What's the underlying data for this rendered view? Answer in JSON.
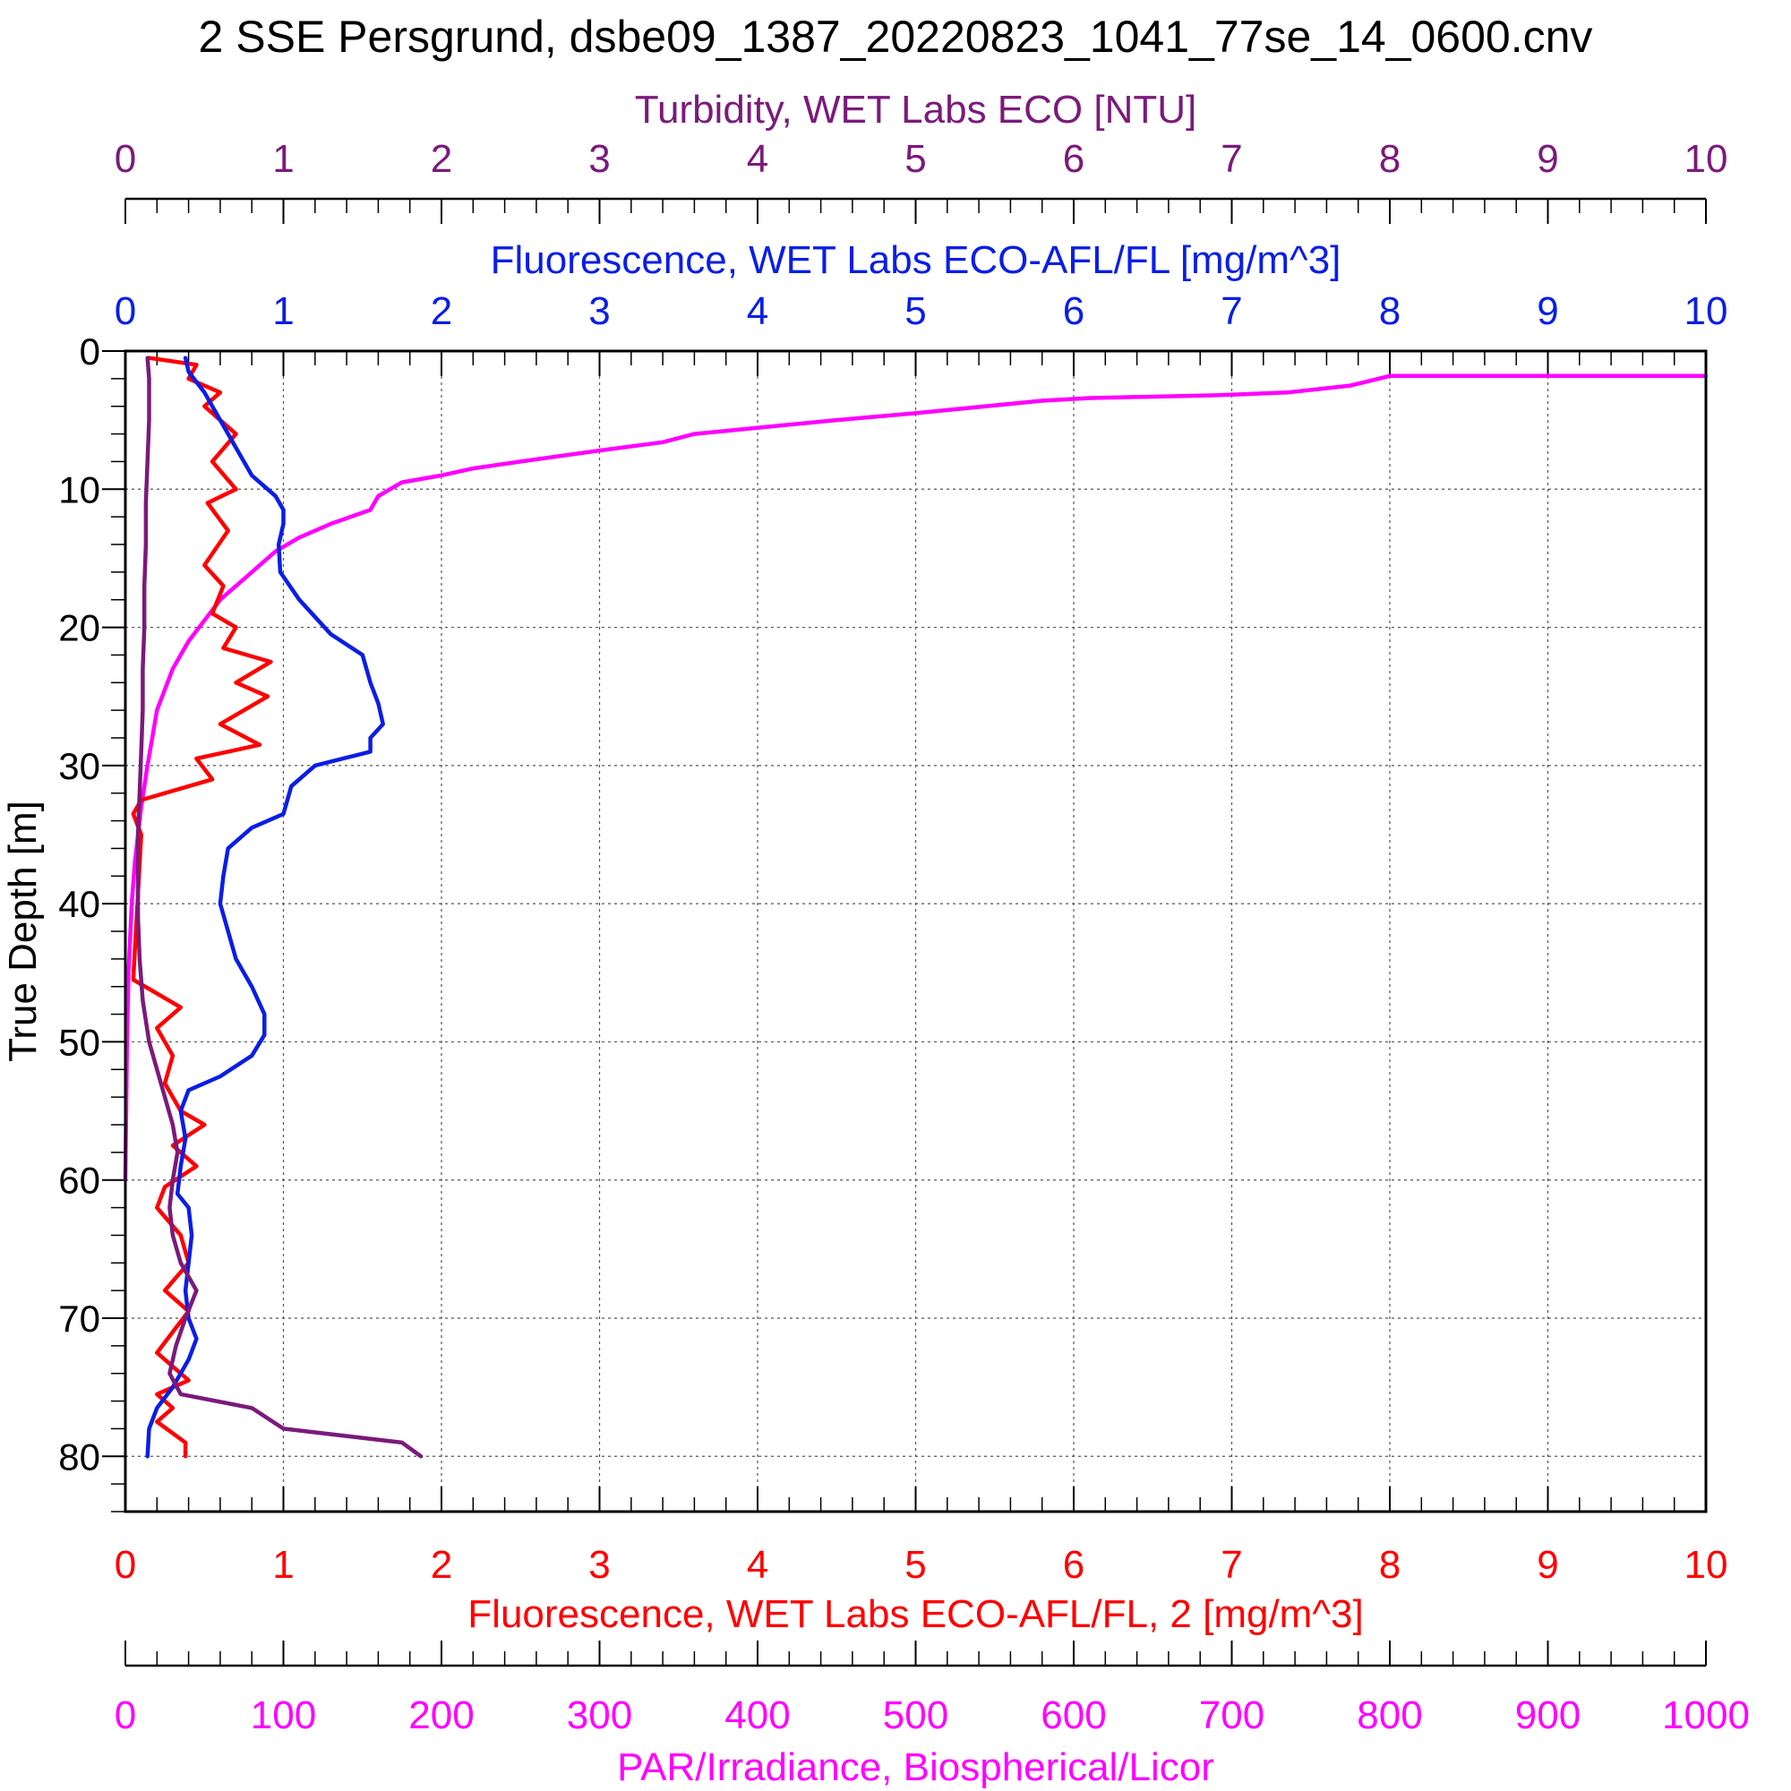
{
  "colors": {
    "turbidity": "#7b1a7b",
    "fluorescence": "#0a1ee6",
    "fluorescence2": "#ff0000",
    "par": "#ff00ff",
    "axis": "#000000",
    "grid": "#555555"
  },
  "chart_data": {
    "type": "line",
    "title": "2 SSE Persgrund, dsbe09_1387_20220823_1041_77se_14_0600.cnv",
    "y_axis": {
      "label": "True Depth [m]",
      "range": [
        0,
        84
      ],
      "inverted": true,
      "ticks": [
        "0",
        "10",
        "20",
        "30",
        "40",
        "50",
        "60",
        "70",
        "80"
      ]
    },
    "x_axes": [
      {
        "id": "turbidity",
        "label": "Turbidity, WET Labs ECO [NTU]",
        "position": "top-outer",
        "range": [
          0,
          10
        ],
        "ticks": [
          "0",
          "1",
          "2",
          "3",
          "4",
          "5",
          "6",
          "7",
          "8",
          "9",
          "10"
        ]
      },
      {
        "id": "fluorescence",
        "label": "Fluorescence, WET Labs ECO-AFL/FL [mg/m^3]",
        "position": "top-inner",
        "range": [
          0,
          10
        ],
        "ticks": [
          "0",
          "1",
          "2",
          "3",
          "4",
          "5",
          "6",
          "7",
          "8",
          "9",
          "10"
        ]
      },
      {
        "id": "fluorescence2",
        "label": "Fluorescence, WET Labs ECO-AFL/FL, 2 [mg/m^3]",
        "position": "bottom-inner",
        "range": [
          0,
          10
        ],
        "ticks": [
          "0",
          "1",
          "2",
          "3",
          "4",
          "5",
          "6",
          "7",
          "8",
          "9",
          "10"
        ]
      },
      {
        "id": "par",
        "label": "PAR/Irradiance, Biospherical/Licor",
        "position": "bottom-outer",
        "range": [
          0,
          1000
        ],
        "ticks": [
          "0",
          "100",
          "200",
          "300",
          "400",
          "500",
          "600",
          "700",
          "800",
          "900",
          "1000"
        ]
      }
    ],
    "grid": true,
    "series": [
      {
        "axis": "turbidity",
        "points": [
          [
            0.14,
            0.5
          ],
          [
            0.15,
            2
          ],
          [
            0.15,
            5
          ],
          [
            0.14,
            8
          ],
          [
            0.13,
            11
          ],
          [
            0.13,
            14
          ],
          [
            0.12,
            17
          ],
          [
            0.12,
            20
          ],
          [
            0.11,
            23
          ],
          [
            0.11,
            26
          ],
          [
            0.1,
            29
          ],
          [
            0.09,
            32
          ],
          [
            0.08,
            35
          ],
          [
            0.08,
            38
          ],
          [
            0.08,
            41
          ],
          [
            0.09,
            44
          ],
          [
            0.11,
            47
          ],
          [
            0.15,
            50
          ],
          [
            0.2,
            52
          ],
          [
            0.25,
            54
          ],
          [
            0.3,
            56
          ],
          [
            0.33,
            58
          ],
          [
            0.3,
            60
          ],
          [
            0.28,
            62
          ],
          [
            0.3,
            64
          ],
          [
            0.35,
            66
          ],
          [
            0.45,
            68
          ],
          [
            0.38,
            70
          ],
          [
            0.32,
            72
          ],
          [
            0.28,
            74
          ],
          [
            0.35,
            75.5
          ],
          [
            0.8,
            76.5
          ],
          [
            1.0,
            78
          ],
          [
            1.75,
            79
          ],
          [
            1.87,
            80
          ]
        ]
      },
      {
        "axis": "fluorescence",
        "points": [
          [
            0.38,
            0.5
          ],
          [
            0.4,
            1.5
          ],
          [
            0.5,
            3
          ],
          [
            0.6,
            5
          ],
          [
            0.7,
            7
          ],
          [
            0.8,
            9
          ],
          [
            0.95,
            10.5
          ],
          [
            1.0,
            11.5
          ],
          [
            1.0,
            12.5
          ],
          [
            0.97,
            14
          ],
          [
            0.98,
            16
          ],
          [
            1.1,
            18
          ],
          [
            1.3,
            20.5
          ],
          [
            1.5,
            22
          ],
          [
            1.55,
            24
          ],
          [
            1.6,
            25.5
          ],
          [
            1.63,
            27
          ],
          [
            1.55,
            28
          ],
          [
            1.55,
            29
          ],
          [
            1.2,
            30
          ],
          [
            1.05,
            31.5
          ],
          [
            1.0,
            33.5
          ],
          [
            0.8,
            34.5
          ],
          [
            0.65,
            36
          ],
          [
            0.62,
            38
          ],
          [
            0.6,
            40
          ],
          [
            0.65,
            42
          ],
          [
            0.7,
            44
          ],
          [
            0.8,
            46
          ],
          [
            0.88,
            48
          ],
          [
            0.88,
            49.5
          ],
          [
            0.8,
            51
          ],
          [
            0.6,
            52.5
          ],
          [
            0.4,
            53.5
          ],
          [
            0.35,
            55
          ],
          [
            0.38,
            57
          ],
          [
            0.35,
            59
          ],
          [
            0.33,
            61
          ],
          [
            0.4,
            62
          ],
          [
            0.42,
            64
          ],
          [
            0.4,
            66
          ],
          [
            0.38,
            68
          ],
          [
            0.4,
            70
          ],
          [
            0.45,
            71.5
          ],
          [
            0.4,
            73
          ],
          [
            0.3,
            75
          ],
          [
            0.2,
            76.5
          ],
          [
            0.15,
            78
          ],
          [
            0.14,
            80
          ]
        ]
      },
      {
        "axis": "fluorescence2",
        "points": [
          [
            0.15,
            0.5
          ],
          [
            0.45,
            1
          ],
          [
            0.4,
            2
          ],
          [
            0.6,
            3
          ],
          [
            0.5,
            4
          ],
          [
            0.7,
            6
          ],
          [
            0.55,
            8
          ],
          [
            0.7,
            10
          ],
          [
            0.52,
            11
          ],
          [
            0.65,
            13
          ],
          [
            0.5,
            15.5
          ],
          [
            0.62,
            17
          ],
          [
            0.55,
            19
          ],
          [
            0.7,
            20
          ],
          [
            0.62,
            21.5
          ],
          [
            0.92,
            22.5
          ],
          [
            0.7,
            24
          ],
          [
            0.9,
            25
          ],
          [
            0.6,
            27
          ],
          [
            0.85,
            28.5
          ],
          [
            0.45,
            29.5
          ],
          [
            0.55,
            31
          ],
          [
            0.1,
            32.5
          ],
          [
            0.05,
            33.5
          ],
          [
            0.1,
            35
          ],
          [
            0.05,
            45.5
          ],
          [
            0.35,
            47.5
          ],
          [
            0.2,
            49
          ],
          [
            0.3,
            51
          ],
          [
            0.25,
            53
          ],
          [
            0.35,
            55
          ],
          [
            0.5,
            56
          ],
          [
            0.3,
            57.5
          ],
          [
            0.45,
            59
          ],
          [
            0.25,
            60.5
          ],
          [
            0.2,
            62
          ],
          [
            0.35,
            64
          ],
          [
            0.4,
            66
          ],
          [
            0.25,
            68
          ],
          [
            0.4,
            69.5
          ],
          [
            0.3,
            71
          ],
          [
            0.2,
            72.5
          ],
          [
            0.4,
            74.5
          ],
          [
            0.2,
            75.5
          ],
          [
            0.3,
            76.5
          ],
          [
            0.2,
            77.5
          ],
          [
            0.38,
            79
          ],
          [
            0.38,
            80
          ]
        ]
      },
      {
        "axis": "par",
        "points": [
          [
            1000,
            1.8
          ],
          [
            800,
            1.8
          ],
          [
            775,
            2.5
          ],
          [
            735,
            3
          ],
          [
            690,
            3.2
          ],
          [
            610,
            3.4
          ],
          [
            580,
            3.6
          ],
          [
            500,
            4.5
          ],
          [
            450,
            5
          ],
          [
            360,
            6
          ],
          [
            340,
            6.6
          ],
          [
            300,
            7.2
          ],
          [
            250,
            8
          ],
          [
            220,
            8.5
          ],
          [
            200,
            9
          ],
          [
            175,
            9.5
          ],
          [
            160,
            10.5
          ],
          [
            155,
            11.5
          ],
          [
            130,
            12.5
          ],
          [
            110,
            13.5
          ],
          [
            95,
            14.5
          ],
          [
            80,
            16
          ],
          [
            60,
            18
          ],
          [
            40,
            21
          ],
          [
            30,
            23
          ],
          [
            20,
            26
          ],
          [
            14,
            30
          ],
          [
            10,
            33
          ],
          [
            6,
            37
          ],
          [
            4,
            40
          ],
          [
            2,
            45
          ],
          [
            1,
            50
          ],
          [
            0,
            60
          ]
        ]
      }
    ]
  }
}
